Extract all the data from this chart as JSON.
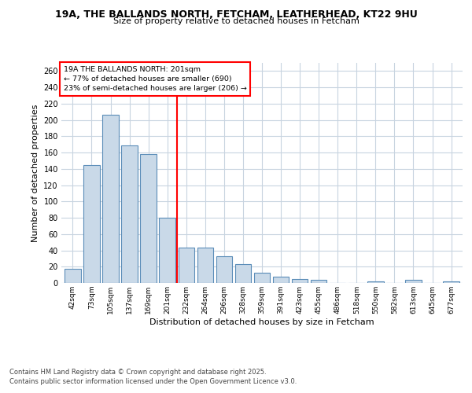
{
  "title_line1": "19A, THE BALLANDS NORTH, FETCHAM, LEATHERHEAD, KT22 9HU",
  "title_line2": "Size of property relative to detached houses in Fetcham",
  "xlabel": "Distribution of detached houses by size in Fetcham",
  "ylabel": "Number of detached properties",
  "footer_line1": "Contains HM Land Registry data © Crown copyright and database right 2025.",
  "footer_line2": "Contains public sector information licensed under the Open Government Licence v3.0.",
  "annotation_title": "19A THE BALLANDS NORTH: 201sqm",
  "annotation_line2": "← 77% of detached houses are smaller (690)",
  "annotation_line3": "23% of semi-detached houses are larger (206) →",
  "bar_color": "#c9d9e8",
  "bar_edge_color": "#5b8db8",
  "vline_color": "red",
  "background_color": "#ffffff",
  "grid_color": "#c8d4e0",
  "categories": [
    "42sqm",
    "73sqm",
    "105sqm",
    "137sqm",
    "169sqm",
    "201sqm",
    "232sqm",
    "264sqm",
    "296sqm",
    "328sqm",
    "359sqm",
    "391sqm",
    "423sqm",
    "455sqm",
    "486sqm",
    "518sqm",
    "550sqm",
    "582sqm",
    "613sqm",
    "645sqm",
    "677sqm"
  ],
  "values": [
    17,
    145,
    206,
    169,
    158,
    80,
    43,
    43,
    33,
    23,
    13,
    8,
    5,
    4,
    0,
    0,
    2,
    0,
    4,
    0,
    2
  ],
  "ylim": [
    0,
    270
  ],
  "yticks": [
    0,
    20,
    40,
    60,
    80,
    100,
    120,
    140,
    160,
    180,
    200,
    220,
    240,
    260
  ],
  "figsize": [
    6.0,
    5.0
  ],
  "dpi": 100
}
